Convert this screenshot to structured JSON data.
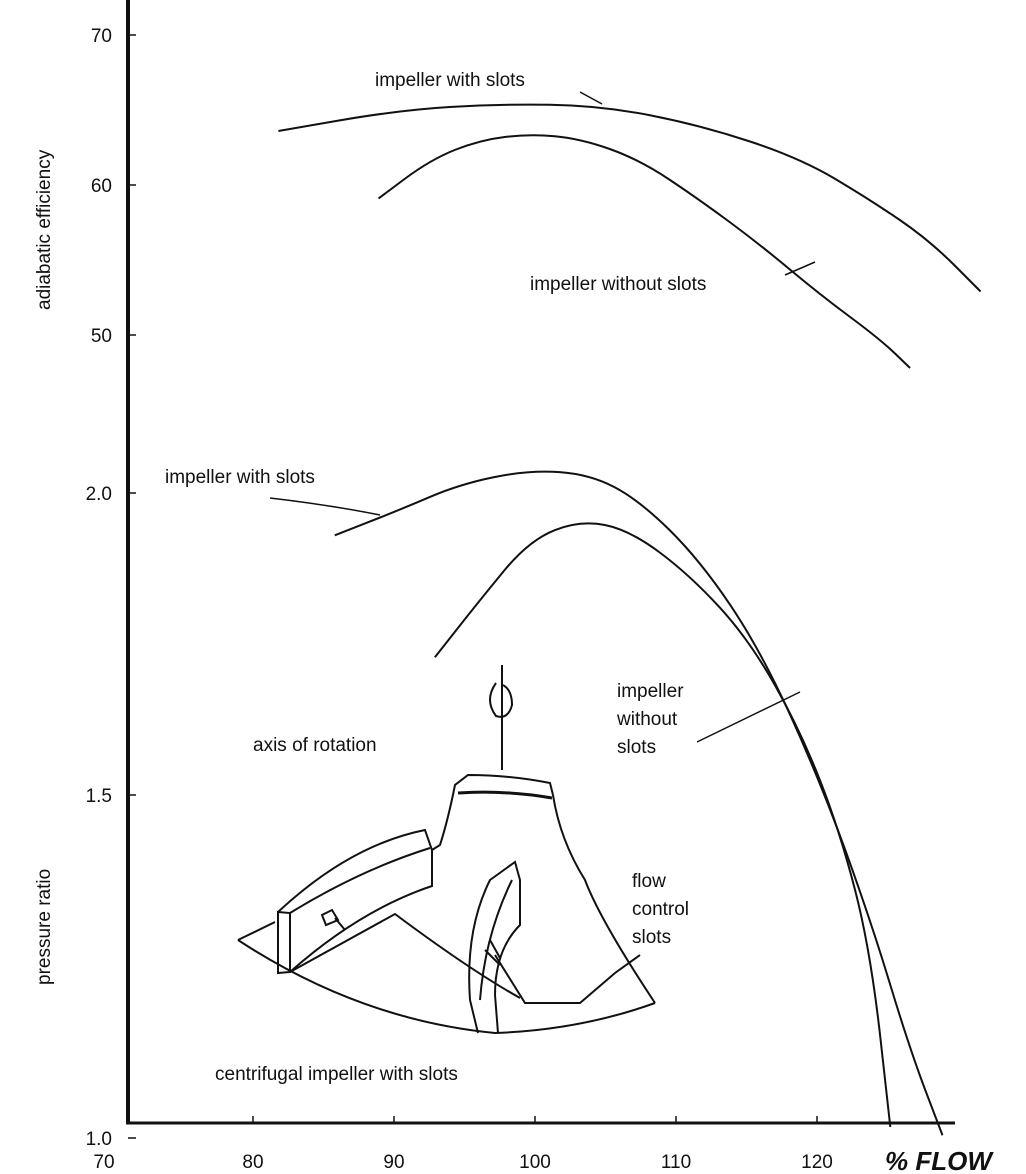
{
  "chart_data": {
    "type": "line",
    "title": "",
    "xlabel": "% FLOW",
    "xlim": [
      70,
      131
    ],
    "x_ticks": [
      "70",
      "80",
      "90",
      "100",
      "110",
      "120"
    ],
    "x_tick_values": [
      70,
      80,
      90,
      100,
      110,
      120
    ],
    "grid": false,
    "panels": [
      {
        "ylabel": "adiabatic efficiency",
        "y_ticks": [
          "70",
          "60",
          "50"
        ],
        "y_tick_values": [
          70,
          60,
          50
        ],
        "ylim": [
          47,
          71
        ],
        "series": [
          {
            "label": "impeller with slots",
            "x": [
              81.8,
              90.4,
              97.5,
              104.6,
              111.7,
              118.8,
              123.8,
              128.0,
              131.6
            ],
            "y": [
              63.6,
              65.0,
              65.4,
              65.3,
              64.0,
              61.8,
              59.0,
              56.3,
              52.9
            ]
          },
          {
            "label": "impeller without slots",
            "x": [
              88.9,
              92.6,
              96.1,
              99.6,
              103.2,
              107.4,
              111.7,
              116.0,
              120.2,
              124.5,
              126.6
            ],
            "y": [
              59.1,
              61.7,
              63.0,
              63.4,
              63.1,
              61.7,
              59.0,
              56.0,
              52.7,
              49.7,
              47.8
            ]
          }
        ]
      },
      {
        "ylabel": "pressure ratio",
        "y_ticks": [
          "2.0",
          "1.5",
          "1.0"
        ],
        "y_tick_values": [
          2.0,
          1.5,
          1.0
        ],
        "ylim": [
          1.0,
          2.1
        ],
        "series": [
          {
            "label": "impeller with slots",
            "x": [
              85.8,
              90.4,
              94.7,
              99.6,
              103.9,
              107.4,
              111.7,
              116.0,
              120.2,
              123.8,
              126.6,
              128.9
            ],
            "y": [
              1.93,
              1.972,
              2.015,
              2.038,
              2.031,
              1.988,
              1.889,
              1.74,
              1.525,
              1.318,
              1.128,
              1.004
            ]
          },
          {
            "label": "impeller without slots",
            "x": [
              92.9,
              96.1,
              99.6,
              103.2,
              106.7,
              111.0,
              115.2,
              118.8,
              121.6,
              123.8,
              125.2
            ],
            "y": [
              1.728,
              1.823,
              1.922,
              1.955,
              1.939,
              1.864,
              1.757,
              1.608,
              1.449,
              1.274,
              1.016
            ]
          }
        ]
      }
    ],
    "annotations": {
      "eff_with": "impeller with slots",
      "eff_without": "impeller without slots",
      "pr_with": "impeller with slots",
      "pr_without": [
        "impeller",
        "without",
        "slots"
      ],
      "axis": "axis of rotation",
      "slots": [
        "flow",
        "control",
        "slots"
      ],
      "caption": "centrifugal impeller with slots"
    }
  }
}
